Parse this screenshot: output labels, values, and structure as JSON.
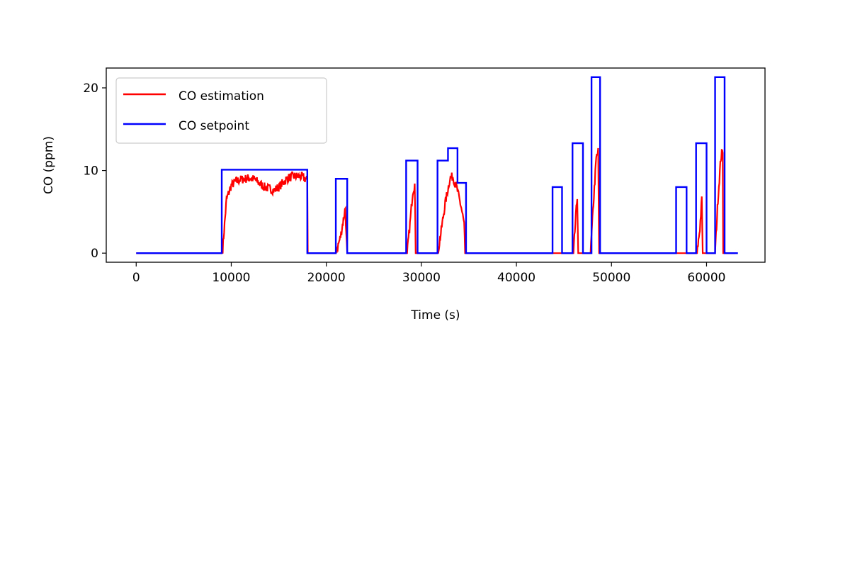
{
  "chart_data": {
    "type": "line",
    "title": "",
    "xlabel": "Time (s)",
    "ylabel": "CO (ppm)",
    "xlim": [
      -3150,
      66150
    ],
    "ylim": [
      -1.1,
      22.4
    ],
    "xticks": [
      0,
      10000,
      20000,
      30000,
      40000,
      50000,
      60000
    ],
    "yticks": [
      0,
      10,
      20
    ],
    "grid": false,
    "legend": {
      "placement": "top-left"
    },
    "series": [
      {
        "name": "CO estimation",
        "color": "#ff0000",
        "style": "noisy",
        "x": [
          0,
          9000,
          9100,
          9300,
          9500,
          10000,
          10500,
          11000,
          11500,
          12000,
          12500,
          13000,
          13500,
          14000,
          14500,
          15000,
          15500,
          16000,
          16500,
          17000,
          17500,
          18000,
          18050,
          21000,
          21500,
          22000,
          22100,
          22200,
          28500,
          28800,
          29100,
          29300,
          29400,
          31700,
          31800,
          32100,
          32500,
          33000,
          33300,
          33700,
          34200,
          34500,
          34600,
          44000,
          44600,
          46000,
          46200,
          46400,
          46500,
          47800,
          48100,
          48400,
          48600,
          48700,
          57000,
          57500,
          59000,
          59300,
          59500,
          59600,
          60900,
          61200,
          61500,
          61700,
          61750,
          63000
        ],
        "y": [
          0,
          0,
          0.5,
          3.5,
          6.5,
          8.2,
          8.7,
          8.9,
          9.0,
          9.1,
          8.9,
          8.4,
          8.0,
          7.8,
          7.6,
          8.0,
          8.6,
          9.1,
          9.3,
          9.3,
          9.2,
          8.8,
          0,
          0,
          2.0,
          5.5,
          2.0,
          0,
          0,
          3.5,
          7.5,
          8.3,
          0,
          0,
          0.5,
          2.8,
          6.0,
          9.0,
          9.3,
          8.0,
          5.5,
          3.5,
          0,
          0,
          0,
          0,
          3.5,
          7.0,
          0,
          0,
          6.0,
          11.5,
          12.3,
          0,
          0,
          0,
          0,
          3.0,
          6.5,
          0,
          0,
          6.5,
          11.5,
          12.5,
          0,
          0
        ]
      },
      {
        "name": "CO setpoint",
        "color": "#0000ff",
        "style": "step",
        "x": [
          0,
          9000,
          9000,
          18000,
          18000,
          21000,
          21000,
          22200,
          22200,
          28400,
          28400,
          29600,
          29600,
          31700,
          31700,
          32800,
          32800,
          33800,
          33800,
          34700,
          34700,
          43800,
          43800,
          44800,
          44800,
          45900,
          45900,
          47000,
          47000,
          47900,
          47900,
          48800,
          48800,
          56800,
          56800,
          57900,
          57900,
          58900,
          58900,
          60000,
          60000,
          60900,
          60900,
          61900,
          61900,
          63300
        ],
        "y": [
          0,
          0,
          10.1,
          10.1,
          0,
          0,
          9.0,
          9.0,
          0,
          0,
          11.2,
          11.2,
          0,
          0,
          11.2,
          11.2,
          12.7,
          12.7,
          8.5,
          8.5,
          0,
          0,
          8.0,
          8.0,
          0,
          0,
          13.3,
          13.3,
          0,
          0,
          21.3,
          21.3,
          0,
          0,
          8.0,
          8.0,
          0,
          0,
          13.3,
          13.3,
          0,
          0,
          21.3,
          21.3,
          0,
          0
        ]
      }
    ]
  }
}
